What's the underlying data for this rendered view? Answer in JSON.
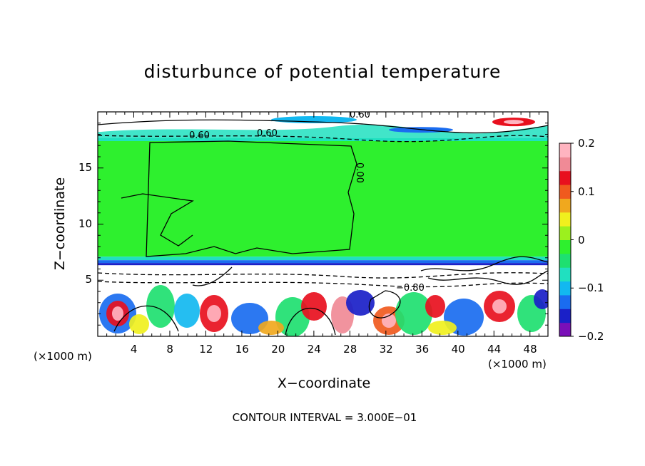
{
  "chart_data": {
    "type": "heatmap",
    "title": "disturbunce of potential temperature",
    "xlabel": "X−coordinate",
    "ylabel": "Z−coordinate",
    "x_unit_left": "(×1000 m)",
    "x_unit_right": "(×1000 m)",
    "x_ticks": [
      4,
      8,
      12,
      16,
      20,
      24,
      28,
      32,
      36,
      40,
      44,
      48
    ],
    "y_ticks": [
      5,
      10,
      15
    ],
    "xlim": [
      0,
      50
    ],
    "ylim": [
      0,
      20
    ],
    "colorbar": {
      "range": [
        -0.2,
        0.2
      ],
      "tick_labels": [
        "0.2",
        "0.1",
        "0",
        "−0.1",
        "−0.2"
      ],
      "tick_values": [
        0.2,
        0.1,
        0,
        -0.1,
        -0.2
      ],
      "colors": [
        "#7a0fb8",
        "#1a20c8",
        "#1a6cf0",
        "#12b8f0",
        "#20e0c0",
        "#1ee070",
        "#2ef02e",
        "#9cf01e",
        "#f0f01e",
        "#f0a81e",
        "#f05a1e",
        "#e8101e",
        "#f08a96",
        "#ffb4c0"
      ]
    },
    "contour_labels": [
      "0.60",
      "0.60",
      "0.60",
      "0.00",
      "−0.80"
    ],
    "contour_interval_text": "CONTOUR INTERVAL = 3.000E−01",
    "grid": false
  }
}
